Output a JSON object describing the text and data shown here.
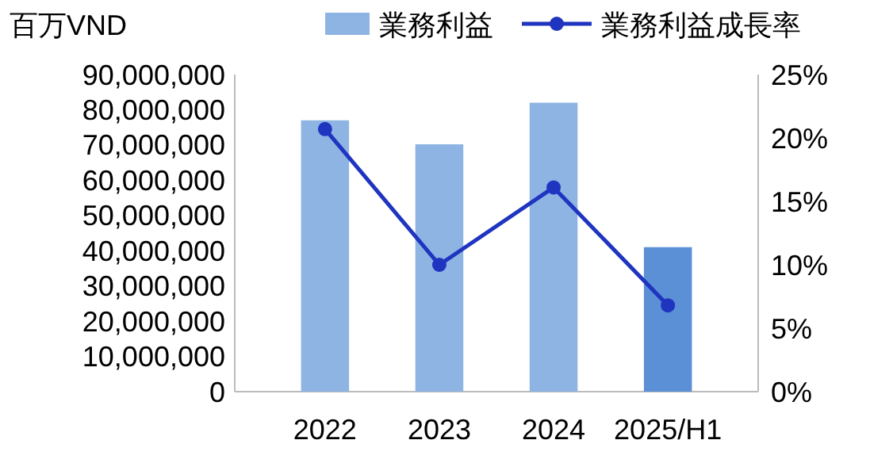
{
  "chart_data": {
    "type": "bar",
    "ylabel": "百万VND",
    "categories": [
      "2022",
      "2023",
      "2024",
      "2025/H1"
    ],
    "series": [
      {
        "name": "業務利益",
        "colors": [
          "#8eb4e3",
          "#8eb4e3",
          "#8eb4e3",
          "#5b8fd6"
        ],
        "color": "#8eb4e3",
        "values": [
          77000000,
          70200000,
          82000000,
          41000000
        ]
      },
      {
        "name": "業務利益成長率",
        "type": "line",
        "axis": "y2",
        "color": "#1f35c0",
        "marker": "circle",
        "line_style": "solid",
        "values": [
          20.7,
          10,
          16.1,
          6.8
        ]
      }
    ],
    "ylim": [
      0,
      90000000
    ],
    "yticks": [
      {
        "value": 0,
        "label": "0"
      },
      {
        "value": 10000000,
        "label": "10,000,000"
      },
      {
        "value": 20000000,
        "label": "20,000,000"
      },
      {
        "value": 30000000,
        "label": "30,000,000"
      },
      {
        "value": 40000000,
        "label": "40,000,000"
      },
      {
        "value": 50000000,
        "label": "50,000,000"
      },
      {
        "value": 60000000,
        "label": "60,000,000"
      },
      {
        "value": 70000000,
        "label": "70,000,000"
      },
      {
        "value": 80000000,
        "label": "80,000,000"
      },
      {
        "value": 90000000,
        "label": "90,000,000"
      }
    ],
    "y2lim": [
      0,
      25
    ],
    "y2ticks": [
      {
        "value": 0,
        "label": "0%"
      },
      {
        "value": 5,
        "label": "5%"
      },
      {
        "value": 10,
        "label": "10%"
      },
      {
        "value": 15,
        "label": "15%"
      },
      {
        "value": 20,
        "label": "20%"
      },
      {
        "value": 25,
        "label": "25%"
      }
    ],
    "grid": false,
    "legend": "top"
  }
}
